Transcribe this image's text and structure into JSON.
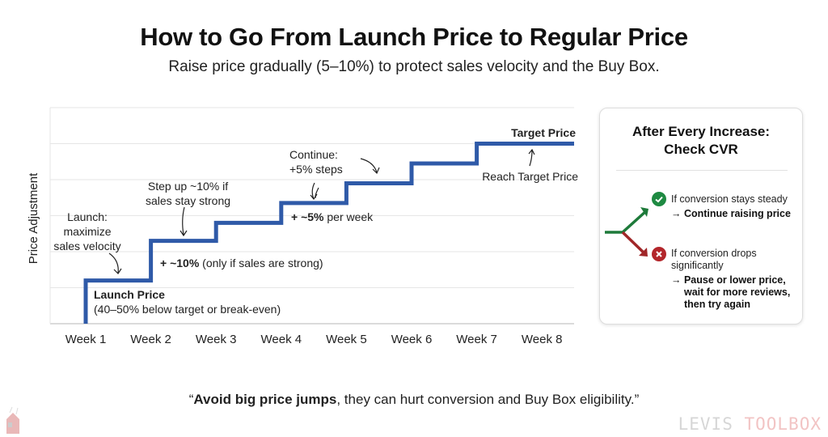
{
  "header": {
    "title": "How to Go From Launch Price to Regular Price",
    "subtitle": "Raise price gradually (5–10%) to protect sales velocity and the Buy Box."
  },
  "chart_data": {
    "type": "line",
    "step": true,
    "ylabel": "Price Adjustment",
    "xlabel": "",
    "categories": [
      "Week 1",
      "Week 2",
      "Week 3",
      "Week 4",
      "Week 5",
      "Week 6",
      "Week 7",
      "Week 8"
    ],
    "values": [
      1.2,
      2.3,
      2.8,
      3.35,
      3.9,
      4.45,
      5.0,
      5.0
    ],
    "ylim": [
      0,
      6
    ],
    "grid": true,
    "line_color": "#2f5aa8",
    "annotations": {
      "launch_note": [
        "Launch:",
        "maximize",
        "sales velocity"
      ],
      "launch_price_title": "Launch Price",
      "launch_price_note": "(40–50% below target or break-even)",
      "step_up_note": [
        "Step up ~10% if",
        "sales stay strong"
      ],
      "ten_pct_bold": "+ ~10%",
      "ten_pct_rest": " (only if sales are strong)",
      "continue_note": [
        "Continue:",
        "+5% steps"
      ],
      "five_pct_bold": "+ ~5%",
      "five_pct_rest": " per week",
      "target_price": "Target Price",
      "reach_target": "Reach Target Price"
    }
  },
  "panel": {
    "title_line1": "After Every Increase:",
    "title_line2": "Check CVR",
    "steady_condition": "If conversion stays steady",
    "steady_action": "→ Continue raising price",
    "drop_condition_1": "If conversion drops",
    "drop_condition_2": "significantly",
    "drop_action_1": "→ Pause or lower price,",
    "drop_action_2": "wait for more reviews,",
    "drop_action_3": "then try again",
    "success_color": "#1e7a3a",
    "danger_color": "#b3262b"
  },
  "footer": {
    "quote_open": "“",
    "quote_bold": "Avoid big price jumps",
    "quote_rest": ", they can hurt conversion and Buy Box eligibility.”",
    "watermark_part1": "LEVIS ",
    "watermark_part2": "TOOLBOX"
  }
}
